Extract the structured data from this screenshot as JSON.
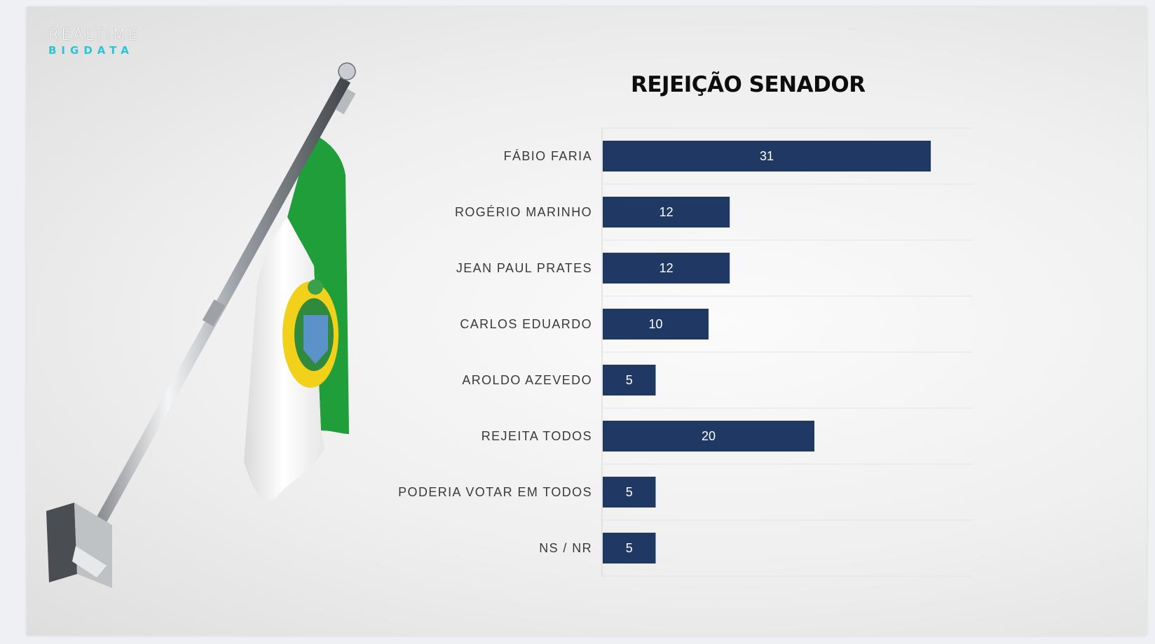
{
  "logo": {
    "line1": "REALTIME",
    "line2": "BIGDATA"
  },
  "colors": {
    "bar": "#1f3864",
    "bar_label": "#ffffff",
    "category_label": "#3a3a3a",
    "flag_green": "#1f9e3a",
    "flag_white": "#ffffff",
    "flag_yellow": "#f2d11b"
  },
  "chart_data": {
    "type": "bar",
    "orientation": "horizontal",
    "title": "REJEIÇÃO SENADOR",
    "categories": [
      "FÁBIO FARIA",
      "ROGÉRIO MARINHO",
      "JEAN PAUL PRATES",
      "CARLOS EDUARDO",
      "AROLDO AZEVEDO",
      "REJEITA TODOS",
      "PODERIA VOTAR EM TODOS",
      "NS / NR"
    ],
    "values": [
      31,
      12,
      12,
      10,
      5,
      20,
      5,
      5
    ],
    "data_labels": true,
    "xlim": [
      0,
      35
    ],
    "grid": false,
    "legend": "none"
  }
}
